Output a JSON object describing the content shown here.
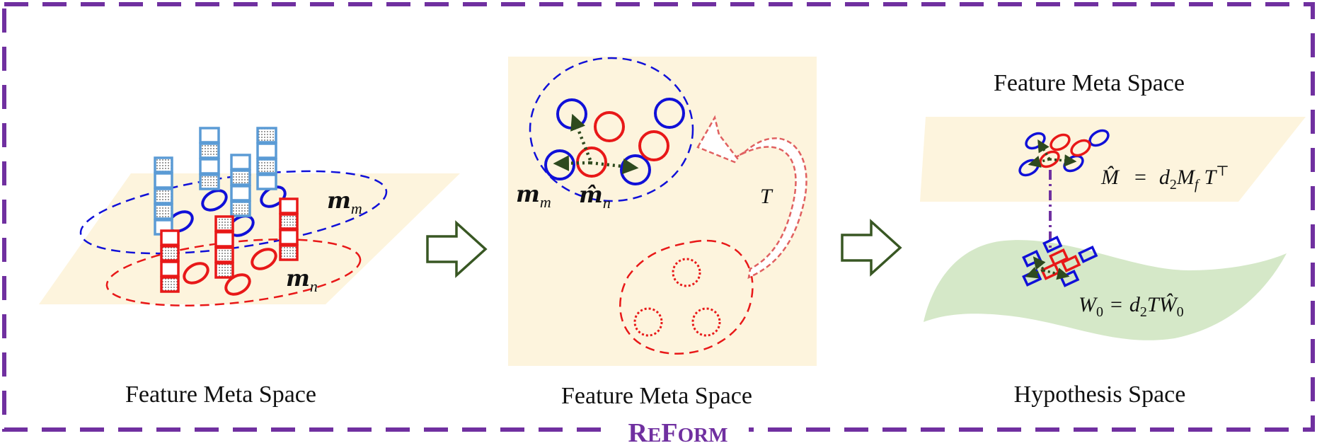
{
  "colors": {
    "frame": "#7030a0",
    "plane": "#fdf4dd",
    "hypothesis": "#d5e8c8",
    "blue": "#1010d8",
    "light_blue": "#5b9bd5",
    "red": "#e81818",
    "arrow": "#385723",
    "dotted_arrow": "#2e4a1e",
    "transform_arrow": "#e06060"
  },
  "icons": [
    "block-arrow-right-icon",
    "curved-transform-arrow-icon",
    "dotted-double-arrow-icon"
  ],
  "brand": {
    "big_r": "R",
    "small_e": "E",
    "big_f": "F",
    "small_orm": "ORM"
  },
  "panel_left": {
    "caption": "Feature Meta Space",
    "label_mm_base": "m",
    "label_mm_sub": "m",
    "label_mn_base": "m",
    "label_mn_sub": "n"
  },
  "panel_middle": {
    "caption": "Feature Meta Space",
    "label_mm_base": "m",
    "label_mm_sub": "m",
    "label_mhat_base": "m̂",
    "label_mhat_sub": "n",
    "label_t": "T"
  },
  "panel_right": {
    "title_top": "Feature Meta Space",
    "caption": "Hypothesis Space",
    "eq1": {
      "lhs": "M̂",
      "eq": "=",
      "d": "d",
      "d_sub": "2",
      "m": "M",
      "m_sub": "f",
      "t": "T",
      "t_sup": "⊤"
    },
    "eq2": {
      "w": "W",
      "w_sub": "0",
      "eq": "=",
      "d": "d",
      "d_sub": "2",
      "t": "T",
      "what": "Ŵ",
      "what_sub": "0"
    }
  }
}
